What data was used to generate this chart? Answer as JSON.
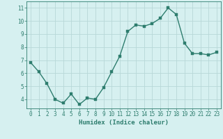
{
  "x": [
    0,
    1,
    2,
    3,
    4,
    5,
    6,
    7,
    8,
    9,
    10,
    11,
    12,
    13,
    14,
    15,
    16,
    17,
    18,
    19,
    20,
    21,
    22,
    23
  ],
  "y": [
    6.8,
    6.1,
    5.2,
    4.0,
    3.7,
    4.4,
    3.6,
    4.1,
    4.0,
    4.9,
    6.1,
    7.3,
    9.2,
    9.7,
    9.6,
    9.8,
    10.2,
    11.0,
    10.5,
    8.3,
    7.5,
    7.5,
    7.4,
    7.6
  ],
  "line_color": "#2e7d6e",
  "marker_color": "#2e7d6e",
  "bg_color": "#d6f0f0",
  "grid_color": "#b8d8d8",
  "xlabel": "Humidex (Indice chaleur)",
  "yticks": [
    4,
    5,
    6,
    7,
    8,
    9,
    10,
    11
  ],
  "xlim": [
    -0.5,
    23.5
  ],
  "ylim": [
    3.3,
    11.5
  ],
  "line_width": 1.0,
  "marker_size": 2.5,
  "tick_fontsize": 5.5,
  "xlabel_fontsize": 6.5
}
